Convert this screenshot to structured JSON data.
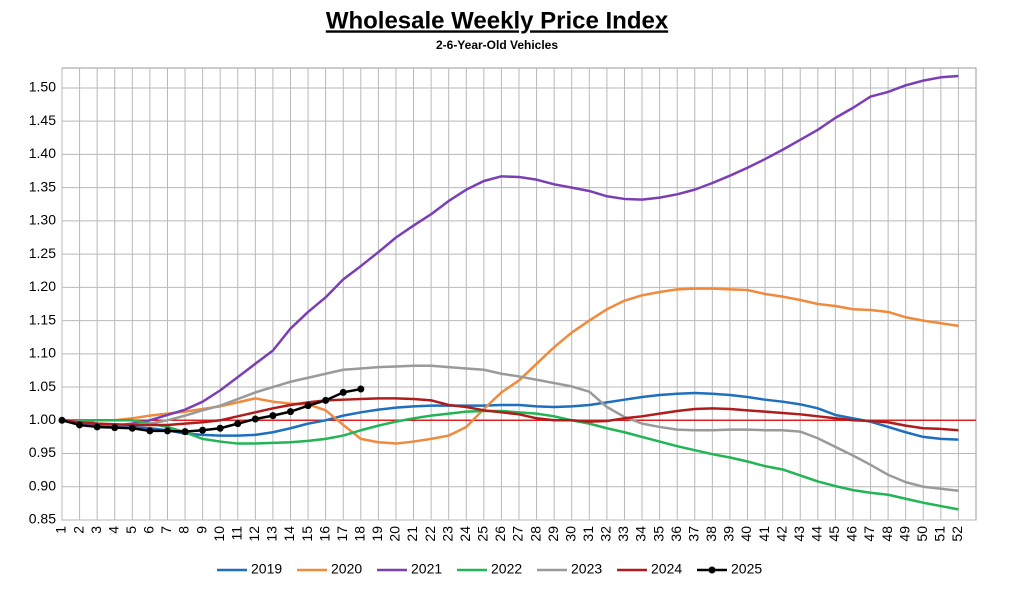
{
  "chart_data": {
    "type": "line",
    "title": "Wholesale Weekly Price Index",
    "subtitle": "2-6-Year-Old Vehicles",
    "x": [
      1,
      2,
      3,
      4,
      5,
      6,
      7,
      8,
      9,
      10,
      11,
      12,
      13,
      14,
      15,
      16,
      17,
      18,
      19,
      20,
      21,
      22,
      23,
      24,
      25,
      26,
      27,
      28,
      29,
      30,
      31,
      32,
      33,
      34,
      35,
      36,
      37,
      38,
      39,
      40,
      41,
      42,
      43,
      44,
      45,
      46,
      47,
      48,
      49,
      50,
      51,
      52
    ],
    "xlim": [
      1,
      53
    ],
    "xticks": [
      1,
      2,
      3,
      4,
      5,
      6,
      7,
      8,
      9,
      10,
      11,
      12,
      13,
      14,
      15,
      16,
      17,
      18,
      19,
      20,
      21,
      22,
      23,
      24,
      25,
      26,
      27,
      28,
      29,
      30,
      31,
      32,
      33,
      34,
      35,
      36,
      37,
      38,
      39,
      40,
      41,
      42,
      43,
      44,
      45,
      46,
      47,
      48,
      49,
      50,
      51,
      52
    ],
    "ylim": [
      0.85,
      1.53
    ],
    "yticks": [
      {
        "value": 0.85,
        "label": "0.85"
      },
      {
        "value": 0.9,
        "label": "0.90"
      },
      {
        "value": 0.95,
        "label": "0.95"
      },
      {
        "value": 1.0,
        "label": "1.00"
      },
      {
        "value": 1.05,
        "label": "1.05"
      },
      {
        "value": 1.1,
        "label": "1.10"
      },
      {
        "value": 1.15,
        "label": "1.15"
      },
      {
        "value": 1.2,
        "label": "1.20"
      },
      {
        "value": 1.25,
        "label": "1.25"
      },
      {
        "value": 1.3,
        "label": "1.30"
      },
      {
        "value": 1.35,
        "label": "1.35"
      },
      {
        "value": 1.4,
        "label": "1.40"
      },
      {
        "value": 1.45,
        "label": "1.45"
      },
      {
        "value": 1.5,
        "label": "1.50"
      }
    ],
    "grid": true,
    "reference_line": {
      "value": 1.0,
      "color": "#e02020"
    },
    "legend": "bottom",
    "series": [
      {
        "name": "2019",
        "color": "#1f6fbf",
        "values": [
          1.0,
          1.0,
          0.995,
          0.99,
          0.99,
          0.988,
          0.985,
          0.98,
          0.978,
          0.977,
          0.977,
          0.978,
          0.982,
          0.988,
          0.995,
          1.0,
          1.007,
          1.012,
          1.016,
          1.019,
          1.021,
          1.022,
          1.022,
          1.022,
          1.022,
          1.023,
          1.023,
          1.021,
          1.02,
          1.021,
          1.023,
          1.027,
          1.031,
          1.035,
          1.038,
          1.04,
          1.041,
          1.04,
          1.038,
          1.035,
          1.031,
          1.028,
          1.024,
          1.018,
          1.008,
          1.003,
          0.998,
          0.99,
          0.982,
          0.975,
          0.972,
          0.971
        ]
      },
      {
        "name": "2020",
        "color": "#f08a3c",
        "values": [
          1.0,
          1.0,
          1.0,
          1.0,
          1.003,
          1.007,
          1.01,
          1.013,
          1.017,
          1.021,
          1.027,
          1.033,
          1.028,
          1.025,
          1.024,
          1.015,
          0.993,
          0.972,
          0.967,
          0.965,
          0.968,
          0.972,
          0.977,
          0.99,
          1.017,
          1.042,
          1.06,
          1.085,
          1.11,
          1.132,
          1.15,
          1.167,
          1.18,
          1.188,
          1.193,
          1.197,
          1.198,
          1.198,
          1.197,
          1.196,
          1.19,
          1.186,
          1.181,
          1.175,
          1.172,
          1.167,
          1.166,
          1.163,
          1.155,
          1.15,
          1.146,
          1.142
        ]
      },
      {
        "name": "2021",
        "color": "#7b3fb5",
        "values": [
          1.0,
          0.997,
          0.993,
          0.992,
          0.995,
          1.0,
          1.008,
          1.016,
          1.028,
          1.045,
          1.065,
          1.085,
          1.105,
          1.138,
          1.163,
          1.185,
          1.212,
          1.232,
          1.253,
          1.275,
          1.293,
          1.31,
          1.33,
          1.347,
          1.36,
          1.367,
          1.366,
          1.362,
          1.355,
          1.35,
          1.345,
          1.337,
          1.333,
          1.332,
          1.335,
          1.34,
          1.347,
          1.357,
          1.368,
          1.38,
          1.393,
          1.407,
          1.422,
          1.437,
          1.455,
          1.47,
          1.487,
          1.494,
          1.504,
          1.511,
          1.516,
          1.518
        ]
      },
      {
        "name": "2022",
        "color": "#22b455",
        "values": [
          1.0,
          1.0,
          1.0,
          1.0,
          1.0,
          0.995,
          0.99,
          0.982,
          0.972,
          0.968,
          0.965,
          0.965,
          0.966,
          0.967,
          0.969,
          0.972,
          0.977,
          0.985,
          0.992,
          0.998,
          1.003,
          1.007,
          1.01,
          1.013,
          1.014,
          1.014,
          1.012,
          1.01,
          1.006,
          1.0,
          0.995,
          0.988,
          0.982,
          0.975,
          0.968,
          0.961,
          0.955,
          0.949,
          0.944,
          0.938,
          0.931,
          0.926,
          0.917,
          0.908,
          0.901,
          0.895,
          0.891,
          0.888,
          0.882,
          0.876,
          0.871,
          0.866
        ]
      },
      {
        "name": "2023",
        "color": "#9a9a9a",
        "values": [
          1.0,
          0.998,
          0.995,
          0.993,
          0.993,
          0.995,
          1.0,
          1.007,
          1.015,
          1.022,
          1.032,
          1.042,
          1.05,
          1.058,
          1.064,
          1.07,
          1.076,
          1.078,
          1.08,
          1.081,
          1.082,
          1.082,
          1.08,
          1.078,
          1.076,
          1.07,
          1.066,
          1.061,
          1.056,
          1.051,
          1.043,
          1.02,
          1.005,
          0.995,
          0.99,
          0.986,
          0.985,
          0.985,
          0.986,
          0.986,
          0.985,
          0.985,
          0.983,
          0.973,
          0.96,
          0.947,
          0.933,
          0.918,
          0.907,
          0.9,
          0.897,
          0.894
        ]
      },
      {
        "name": "2024",
        "color": "#b01c1c",
        "values": [
          1.0,
          0.997,
          0.995,
          0.994,
          0.993,
          0.993,
          0.993,
          0.995,
          0.997,
          1.0,
          1.006,
          1.012,
          1.018,
          1.023,
          1.027,
          1.03,
          1.031,
          1.032,
          1.033,
          1.033,
          1.032,
          1.03,
          1.023,
          1.02,
          1.015,
          1.012,
          1.009,
          1.003,
          1.0,
          1.0,
          0.998,
          0.999,
          1.003,
          1.006,
          1.01,
          1.014,
          1.017,
          1.018,
          1.017,
          1.015,
          1.013,
          1.011,
          1.009,
          1.006,
          1.003,
          1.0,
          0.999,
          0.997,
          0.992,
          0.988,
          0.987,
          0.985
        ]
      },
      {
        "name": "2025",
        "color": "#000000",
        "markers": true,
        "values": [
          1.0,
          0.993,
          0.99,
          0.989,
          0.988,
          0.984,
          0.984,
          0.983,
          0.985,
          0.988,
          0.995,
          1.002,
          1.007,
          1.013,
          1.022,
          1.03,
          1.042,
          1.047,
          null,
          null,
          null,
          null,
          null,
          null,
          null,
          null,
          null,
          null,
          null,
          null,
          null,
          null,
          null,
          null,
          null,
          null,
          null,
          null,
          null,
          null,
          null,
          null,
          null,
          null,
          null,
          null,
          null,
          null,
          null,
          null,
          null,
          null
        ]
      }
    ]
  }
}
